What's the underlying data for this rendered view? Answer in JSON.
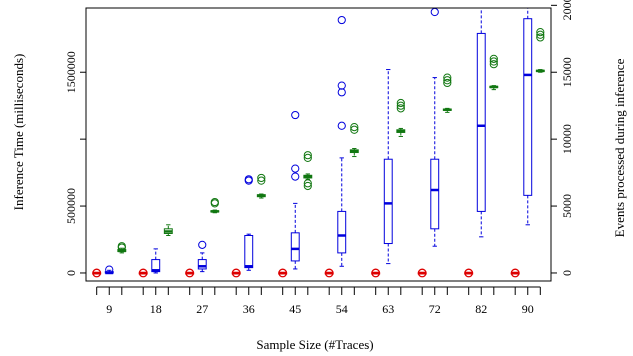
{
  "chart_data": {
    "type": "box",
    "xlabel": "Sample Size (#Traces)",
    "ylabel_left": "Inference Time (milliseconds)",
    "ylabel_right": "Events processed during inference",
    "categories": [
      "9",
      "18",
      "27",
      "36",
      "45",
      "54",
      "63",
      "72",
      "82",
      "90"
    ],
    "left_axis": {
      "lim": [
        -60000,
        1980000
      ],
      "ticks": [
        0,
        500000,
        1000000,
        1500000
      ],
      "tick_labels": [
        "0",
        "500000",
        "",
        "1500000"
      ]
    },
    "right_axis": {
      "lim": [
        -600,
        19800
      ],
      "ticks": [
        0,
        5000,
        10000,
        15000,
        20000
      ],
      "tick_labels": [
        "0",
        "5000",
        "10000",
        "15000",
        "20000"
      ]
    },
    "series": [
      {
        "name": "red",
        "axis": "left",
        "color": "#dd0000",
        "boxes": [
          {
            "min": 0,
            "q1": 0,
            "median": 0,
            "q3": 0,
            "max": 0,
            "outliers": []
          },
          {
            "min": 0,
            "q1": 0,
            "median": 0,
            "q3": 0,
            "max": 0,
            "outliers": []
          },
          {
            "min": 0,
            "q1": 0,
            "median": 0,
            "q3": 0,
            "max": 0,
            "outliers": []
          },
          {
            "min": 0,
            "q1": 0,
            "median": 0,
            "q3": 0,
            "max": 0,
            "outliers": []
          },
          {
            "min": 0,
            "q1": 0,
            "median": 0,
            "q3": 0,
            "max": 0,
            "outliers": []
          },
          {
            "min": 0,
            "q1": 0,
            "median": 0,
            "q3": 0,
            "max": 0,
            "outliers": []
          },
          {
            "min": 0,
            "q1": 0,
            "median": 0,
            "q3": 0,
            "max": 0,
            "outliers": []
          },
          {
            "min": 0,
            "q1": 0,
            "median": 0,
            "q3": 0,
            "max": 0,
            "outliers": []
          },
          {
            "min": 0,
            "q1": 0,
            "median": 0,
            "q3": 0,
            "max": 0,
            "outliers": []
          },
          {
            "min": 0,
            "q1": 0,
            "median": 0,
            "q3": 0,
            "max": 0,
            "outliers": []
          }
        ]
      },
      {
        "name": "blue",
        "axis": "left",
        "color": "#0000dd",
        "boxes": [
          {
            "min": 0,
            "q1": 0,
            "median": 0,
            "q3": 10000,
            "max": 20000,
            "outliers": [
              25000
            ]
          },
          {
            "min": 0,
            "q1": 10000,
            "median": 20000,
            "q3": 100000,
            "max": 180000,
            "outliers": []
          },
          {
            "min": 10000,
            "q1": 30000,
            "median": 50000,
            "q3": 100000,
            "max": 150000,
            "outliers": [
              210000
            ]
          },
          {
            "min": 20000,
            "q1": 40000,
            "median": 50000,
            "q3": 280000,
            "max": 290000,
            "outliers": [
              690000,
              700000
            ]
          },
          {
            "min": 30000,
            "q1": 90000,
            "median": 180000,
            "q3": 300000,
            "max": 520000,
            "outliers": [
              720000,
              780000,
              1180000
            ]
          },
          {
            "min": 50000,
            "q1": 150000,
            "median": 280000,
            "q3": 460000,
            "max": 860000,
            "outliers": [
              1100000,
              1350000,
              1400000,
              1890000
            ]
          },
          {
            "min": 70000,
            "q1": 220000,
            "median": 520000,
            "q3": 850000,
            "max": 1520000,
            "outliers": []
          },
          {
            "min": 200000,
            "q1": 330000,
            "median": 620000,
            "q3": 850000,
            "max": 1460000,
            "outliers": [
              1950000,
              2000000
            ]
          },
          {
            "min": 270000,
            "q1": 460000,
            "median": 1100000,
            "q3": 1790000,
            "max": 2000000,
            "outliers": []
          },
          {
            "min": 360000,
            "q1": 580000,
            "median": 1480000,
            "q3": 1900000,
            "max": 2000000,
            "outliers": []
          }
        ]
      },
      {
        "name": "green",
        "axis": "right",
        "color": "#117711",
        "boxes": [
          {
            "min": 1500,
            "q1": 1600,
            "median": 1650,
            "q3": 1750,
            "max": 1850,
            "outliers": [
              1900,
              2000
            ]
          },
          {
            "min": 2800,
            "q1": 2950,
            "median": 3100,
            "q3": 3300,
            "max": 3600,
            "outliers": []
          },
          {
            "min": 4500,
            "q1": 4560,
            "median": 4600,
            "q3": 4650,
            "max": 4700,
            "outliers": [
              5200,
              5300
            ]
          },
          {
            "min": 5600,
            "q1": 5700,
            "median": 5780,
            "q3": 5850,
            "max": 5900,
            "outliers": [
              6900,
              7100
            ]
          },
          {
            "min": 7000,
            "q1": 7100,
            "median": 7200,
            "q3": 7300,
            "max": 7400,
            "outliers": [
              6500,
              6700,
              8600,
              8800
            ]
          },
          {
            "min": 8700,
            "q1": 9000,
            "median": 9100,
            "q3": 9200,
            "max": 9300,
            "outliers": [
              10700,
              10900
            ]
          },
          {
            "min": 10200,
            "q1": 10500,
            "median": 10600,
            "q3": 10700,
            "max": 10800,
            "outliers": [
              12300,
              12500,
              12700
            ]
          },
          {
            "min": 12000,
            "q1": 12150,
            "median": 12200,
            "q3": 12250,
            "max": 12300,
            "outliers": [
              14200,
              14400,
              14600
            ]
          },
          {
            "min": 13700,
            "q1": 13850,
            "median": 13900,
            "q3": 13950,
            "max": 14000,
            "outliers": [
              15600,
              15800,
              16000
            ]
          },
          {
            "min": 15000,
            "q1": 15050,
            "median": 15100,
            "q3": 15150,
            "max": 15200,
            "outliers": [
              17600,
              17800,
              18000
            ]
          }
        ]
      }
    ],
    "grid": false,
    "legend": "none"
  }
}
